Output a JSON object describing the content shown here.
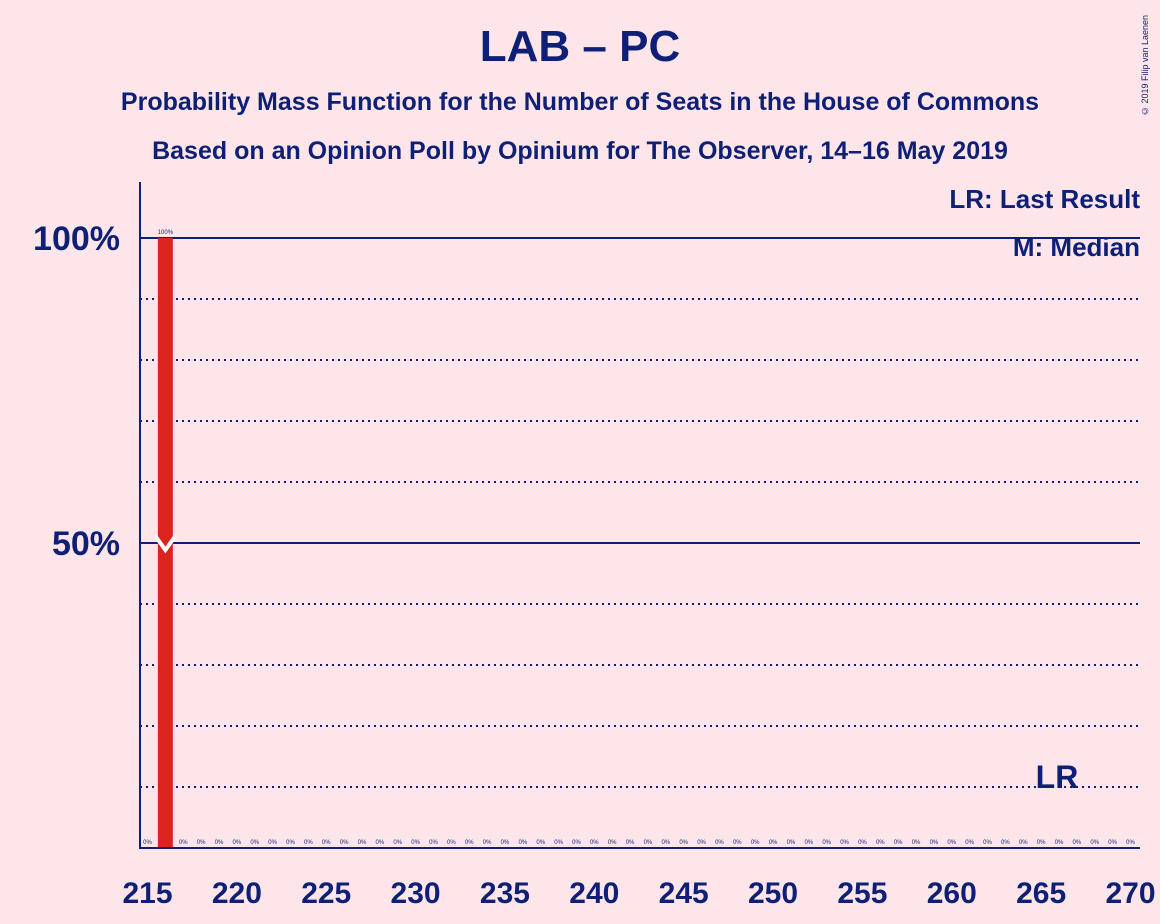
{
  "title": "LAB – PC",
  "subtitle_1": "Probability Mass Function for the Number of Seats in the House of Commons",
  "subtitle_2": "Based on an Opinion Poll by Opinium for The Observer, 14–16 May 2019",
  "copyright": "© 2019 Filip van Laenen",
  "legend": {
    "last_result": "LR: Last Result",
    "median": "M: Median"
  },
  "chart_data": {
    "type": "bar",
    "x": [
      215,
      216,
      217,
      218,
      219,
      220,
      221,
      222,
      223,
      224,
      225,
      226,
      227,
      228,
      229,
      230,
      231,
      232,
      233,
      234,
      235,
      236,
      237,
      238,
      239,
      240,
      241,
      242,
      243,
      244,
      245,
      246,
      247,
      248,
      249,
      250,
      251,
      252,
      253,
      254,
      255,
      256,
      257,
      258,
      259,
      260,
      261,
      262,
      263,
      264,
      265,
      266,
      267,
      268,
      269,
      270
    ],
    "values": [
      0,
      100,
      0,
      0,
      0,
      0,
      0,
      0,
      0,
      0,
      0,
      0,
      0,
      0,
      0,
      0,
      0,
      0,
      0,
      0,
      0,
      0,
      0,
      0,
      0,
      0,
      0,
      0,
      0,
      0,
      0,
      0,
      0,
      0,
      0,
      0,
      0,
      0,
      0,
      0,
      0,
      0,
      0,
      0,
      0,
      0,
      0,
      0,
      0,
      0,
      0,
      0,
      0,
      0,
      0,
      0
    ],
    "value_labels": [
      "0%",
      "100%",
      "0%",
      "0%",
      "0%",
      "0%",
      "0%",
      "0%",
      "0%",
      "0%",
      "0%",
      "0%",
      "0%",
      "0%",
      "0%",
      "0%",
      "0%",
      "0%",
      "0%",
      "0%",
      "0%",
      "0%",
      "0%",
      "0%",
      "0%",
      "0%",
      "0%",
      "0%",
      "0%",
      "0%",
      "0%",
      "0%",
      "0%",
      "0%",
      "0%",
      "0%",
      "0%",
      "0%",
      "0%",
      "0%",
      "0%",
      "0%",
      "0%",
      "0%",
      "0%",
      "0%",
      "0%",
      "0%",
      "0%",
      "0%",
      "0%",
      "0%",
      "0%",
      "0%",
      "0%",
      "0%"
    ],
    "x_ticks": [
      215,
      220,
      225,
      230,
      235,
      240,
      245,
      250,
      255,
      260,
      265,
      270
    ],
    "y_ticks": [
      {
        "value": 50,
        "label": "50%"
      },
      {
        "value": 100,
        "label": "100%"
      }
    ],
    "ylim": [
      0,
      110
    ],
    "median": 216,
    "last_result": {
      "x": 266,
      "label": "LR"
    },
    "gridlines_dotted": [
      10,
      20,
      30,
      40,
      60,
      70,
      80,
      90
    ],
    "gridlines_solid": [
      50,
      100
    ],
    "colors": {
      "bar": "#dc241f",
      "text": "#0e1f76",
      "background": "#fde5ea",
      "median_marker": "#ffffff"
    }
  }
}
